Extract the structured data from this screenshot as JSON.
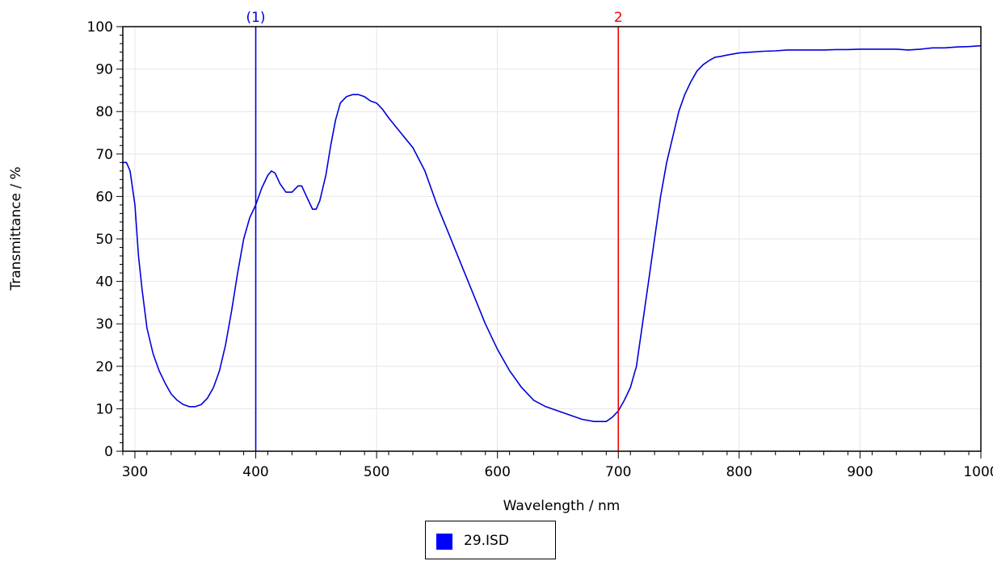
{
  "chart_data": {
    "type": "line",
    "xlabel": "Wavelength / nm",
    "ylabel": "Transmittance / %",
    "xlim": [
      290,
      1000
    ],
    "ylim": [
      0,
      100
    ],
    "x_ticks": [
      300,
      400,
      500,
      600,
      700,
      800,
      900,
      1000
    ],
    "y_ticks": [
      0,
      10,
      20,
      30,
      40,
      50,
      60,
      70,
      80,
      90,
      100
    ],
    "grid": true,
    "legend_position": "bottom-center",
    "markers": [
      {
        "label": "(1)",
        "x": 400,
        "color": "#0000dd"
      },
      {
        "label": "2",
        "x": 700,
        "color": "#ee0000"
      }
    ],
    "series": [
      {
        "name": "29.ISD",
        "color": "#0000dd",
        "x": [
          290,
          293,
          296,
          300,
          303,
          306,
          310,
          315,
          320,
          325,
          330,
          335,
          340,
          345,
          350,
          355,
          360,
          365,
          370,
          375,
          380,
          385,
          390,
          395,
          400,
          405,
          410,
          413,
          416,
          420,
          425,
          430,
          435,
          438,
          442,
          447,
          450,
          453,
          458,
          462,
          466,
          470,
          475,
          480,
          485,
          490,
          495,
          500,
          505,
          510,
          520,
          530,
          540,
          550,
          560,
          570,
          580,
          590,
          600,
          610,
          620,
          630,
          640,
          650,
          660,
          670,
          680,
          690,
          695,
          700,
          705,
          710,
          715,
          720,
          725,
          730,
          735,
          740,
          745,
          750,
          755,
          760,
          765,
          770,
          775,
          780,
          785,
          790,
          800,
          810,
          820,
          830,
          840,
          850,
          860,
          870,
          880,
          890,
          900,
          910,
          920,
          930,
          940,
          950,
          960,
          970,
          980,
          990,
          1000
        ],
        "values": [
          68,
          68,
          66,
          58,
          46,
          38,
          29,
          23,
          19,
          16,
          13.5,
          12,
          11,
          10.5,
          10.5,
          11,
          12.5,
          15,
          19,
          25,
          33,
          42,
          50,
          55,
          58,
          62,
          65,
          66,
          65.5,
          63,
          61,
          61,
          62.5,
          62.5,
          60,
          57,
          57,
          59,
          65,
          72,
          78,
          82,
          83.5,
          84,
          84,
          83.5,
          82.5,
          82,
          80.5,
          78.5,
          75,
          71.5,
          66,
          58,
          51,
          44,
          37,
          30,
          24,
          19,
          15,
          12,
          10.5,
          9.5,
          8.5,
          7.5,
          7,
          7,
          8,
          9.5,
          12,
          15,
          20,
          30,
          40,
          50,
          60,
          68,
          74,
          80,
          84,
          87,
          89.5,
          91,
          92,
          92.8,
          93,
          93.3,
          93.8,
          94,
          94.2,
          94.3,
          94.5,
          94.5,
          94.5,
          94.5,
          94.6,
          94.6,
          94.7,
          94.7,
          94.7,
          94.7,
          94.5,
          94.7,
          95,
          95,
          95.2,
          95.3,
          95.5
        ]
      }
    ]
  },
  "legend": {
    "label": "29.ISD",
    "swatch_color": "#0000ff"
  }
}
